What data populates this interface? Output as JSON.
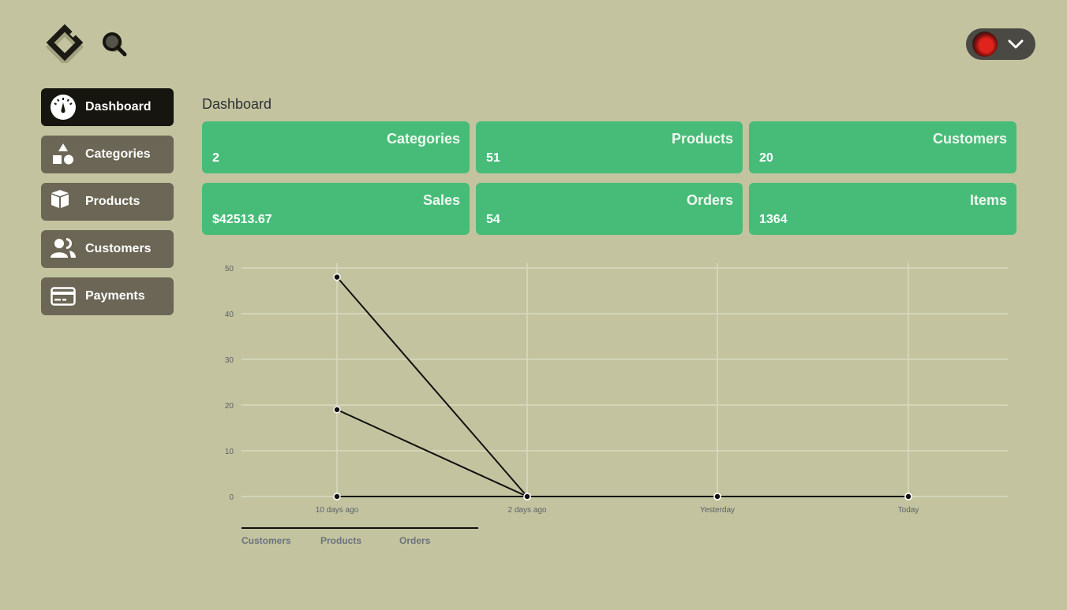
{
  "header": {
    "logo_icon": "diamond-logo",
    "search_icon": "search-icon",
    "user_menu_icon": "chevron-down-icon"
  },
  "sidebar": {
    "items": [
      {
        "label": "Dashboard",
        "icon": "speedometer-icon",
        "active": true
      },
      {
        "label": "Categories",
        "icon": "shapes-icon",
        "active": false
      },
      {
        "label": "Products",
        "icon": "box-icon",
        "active": false
      },
      {
        "label": "Customers",
        "icon": "users-icon",
        "active": false
      },
      {
        "label": "Payments",
        "icon": "credit-card-icon",
        "active": false
      }
    ]
  },
  "main": {
    "title": "Dashboard",
    "stats": [
      {
        "label": "Categories",
        "value": "2"
      },
      {
        "label": "Products",
        "value": "51"
      },
      {
        "label": "Customers",
        "value": "20"
      },
      {
        "label": "Sales",
        "value": "$42513.67"
      },
      {
        "label": "Orders",
        "value": "54"
      },
      {
        "label": "Items",
        "value": "1364"
      }
    ]
  },
  "colors": {
    "background": "#c3c49f",
    "card": "#47bc79",
    "nav_active": "#16150f",
    "nav_inactive": "#6b6655"
  },
  "chart_data": {
    "type": "line",
    "categories": [
      "10 days ago",
      "2 days ago",
      "Yesterday",
      "Today"
    ],
    "series": [
      {
        "name": "Customers",
        "values": [
          19,
          0,
          0,
          0
        ]
      },
      {
        "name": "Products",
        "values": [
          48,
          0,
          0,
          0
        ]
      },
      {
        "name": "Orders",
        "values": [
          0,
          0,
          0,
          0
        ]
      }
    ],
    "ylim": [
      0,
      50
    ],
    "yticks": [
      "0",
      "10",
      "20",
      "30",
      "40",
      "50"
    ],
    "grid": true,
    "legend": "bottom-left"
  }
}
